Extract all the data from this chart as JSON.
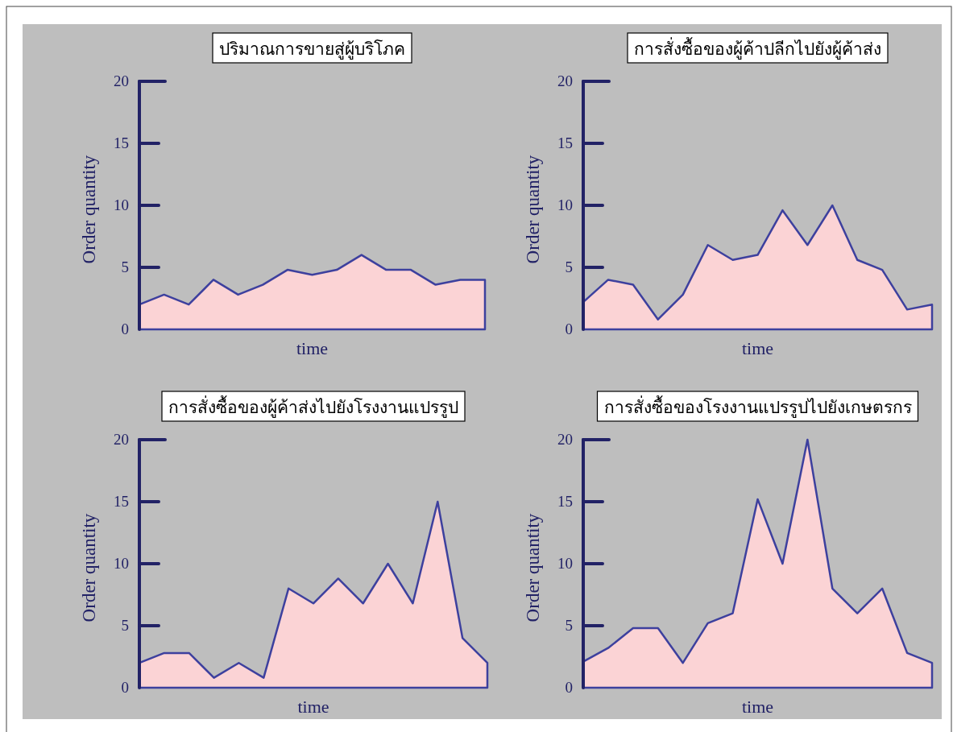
{
  "chart_data": [
    {
      "type": "area",
      "title": "ปริมาณการขายสู่ผู้บริโภค",
      "xlabel": "time",
      "ylabel": "Order quantity",
      "tick_labels": "y",
      "ylim": [
        0,
        20
      ],
      "yticks": [
        0,
        5,
        10,
        15,
        20
      ],
      "categories": [
        null,
        null,
        null,
        null,
        null,
        null,
        null,
        null,
        null,
        null,
        null,
        null,
        null,
        null,
        null
      ],
      "series": [
        {
          "color": "#fbd3d5",
          "values": [
            2,
            2.8,
            2,
            4,
            2.8,
            3.6,
            4.8,
            4.4,
            4.8,
            6,
            4.8,
            4.8,
            3.6,
            4,
            4
          ]
        }
      ]
    },
    {
      "type": "area",
      "title": "การสั่งซื้อของผู้ค้าปลีกไปยังผู้ค้าส่ง",
      "xlabel": "time",
      "ylabel": "Order quantity",
      "tick_labels": "y",
      "ylim": [
        0,
        20
      ],
      "yticks": [
        0,
        5,
        10,
        15,
        20
      ],
      "categories": [
        null,
        null,
        null,
        null,
        null,
        null,
        null,
        null,
        null,
        null,
        null,
        null,
        null,
        null,
        null
      ],
      "series": [
        {
          "color": "#fbd3d5",
          "values": [
            2.2,
            4,
            3.6,
            0.8,
            2.8,
            6.8,
            5.6,
            6,
            9.6,
            6.8,
            10,
            5.6,
            4.8,
            1.6,
            2
          ]
        }
      ]
    },
    {
      "type": "area",
      "title": "การสั่งซื้อของผู้ค้าส่งไปยังโรงงานแปรรูป",
      "xlabel": "time",
      "ylabel": "Order quantity",
      "tick_labels": "y",
      "ylim": [
        0,
        20
      ],
      "yticks": [
        0,
        5,
        10,
        15,
        20
      ],
      "categories": [
        null,
        null,
        null,
        null,
        null,
        null,
        null,
        null,
        null,
        null,
        null,
        null,
        null,
        null,
        null
      ],
      "series": [
        {
          "color": "#fbd3d5",
          "values": [
            2,
            2.8,
            2.8,
            0.8,
            2,
            0.8,
            8,
            6.8,
            8.8,
            6.8,
            10,
            6.8,
            15,
            4,
            2
          ]
        }
      ]
    },
    {
      "type": "area",
      "title": "การสั่งซื้อของโรงงานแปรรูปไปยังเกษตรกร",
      "xlabel": "time",
      "ylabel": "Order quantity",
      "tick_labels": "y",
      "ylim": [
        0,
        20
      ],
      "yticks": [
        0,
        5,
        10,
        15,
        20
      ],
      "categories": [
        null,
        null,
        null,
        null,
        null,
        null,
        null,
        null,
        null,
        null,
        null,
        null,
        null,
        null,
        null
      ],
      "series": [
        {
          "color": "#fbd3d5",
          "values": [
            2.1,
            3.2,
            4.8,
            4.8,
            2,
            5.2,
            6,
            15.2,
            10,
            20,
            8,
            6,
            8,
            2.8,
            2
          ]
        }
      ]
    }
  ]
}
